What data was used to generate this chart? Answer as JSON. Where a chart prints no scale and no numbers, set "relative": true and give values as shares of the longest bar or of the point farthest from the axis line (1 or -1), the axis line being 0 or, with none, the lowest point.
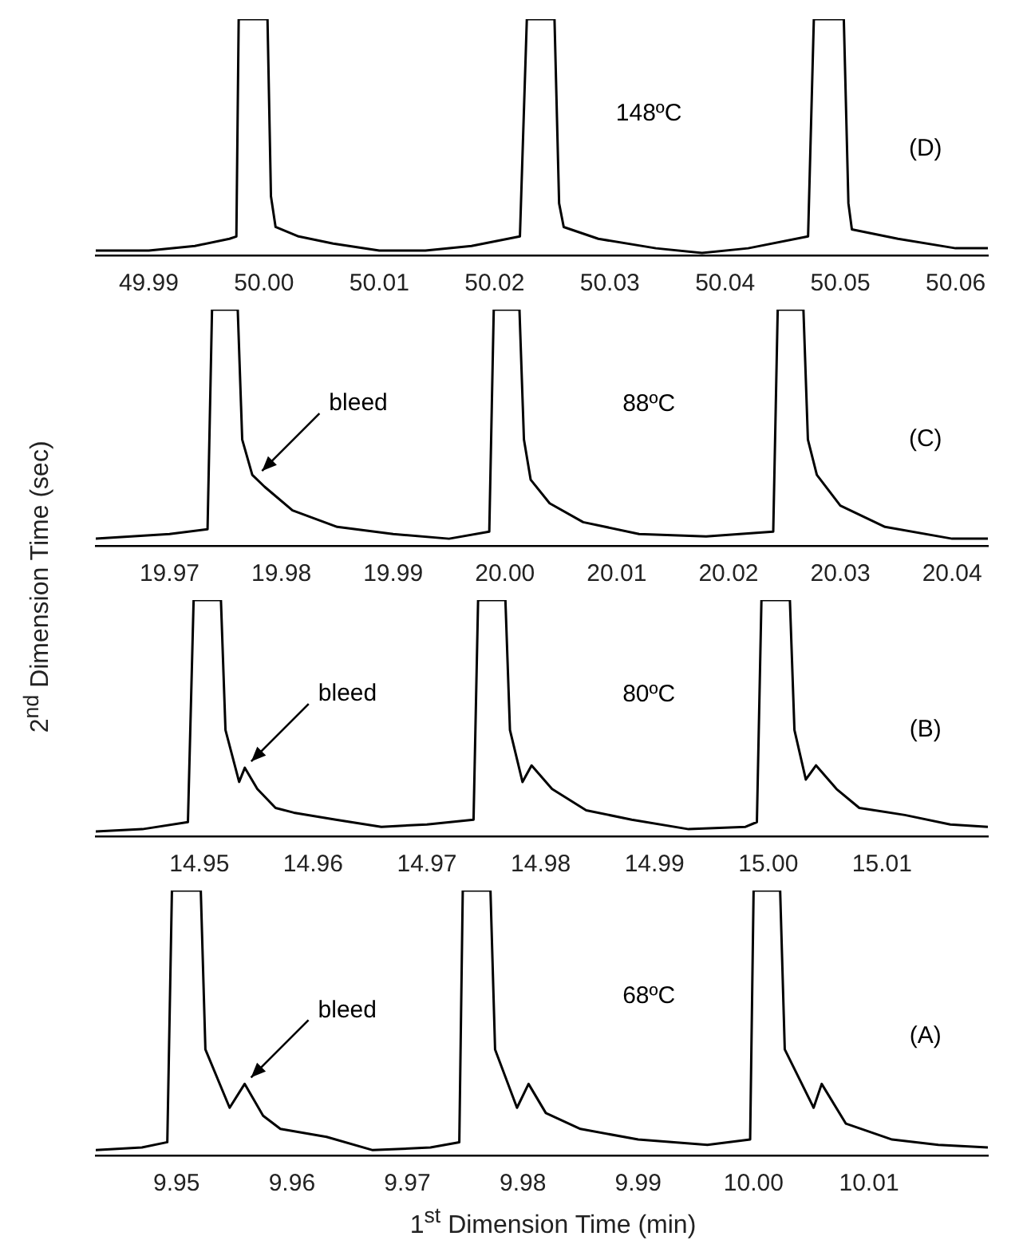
{
  "chart_data": [
    {
      "type": "line",
      "relative": true,
      "annotations": [
        "148ºC",
        "(D)"
      ],
      "xlim": [
        49.9854,
        50.0628
      ],
      "xticks": [
        {
          "value": 49.99,
          "label": "49.99"
        },
        {
          "value": 50.0,
          "label": "50.00"
        },
        {
          "value": 50.01,
          "label": "50.01"
        },
        {
          "value": 50.02,
          "label": "50.02"
        },
        {
          "value": 50.03,
          "label": "50.03"
        },
        {
          "value": 50.04,
          "label": "50.04"
        },
        {
          "value": 50.05,
          "label": "50.05"
        },
        {
          "value": 50.06,
          "label": "50.06"
        }
      ],
      "x": [
        49.9854,
        49.99,
        49.994,
        49.997,
        49.9976,
        49.9978,
        50.0003,
        50.0006,
        50.001,
        50.003,
        50.006,
        50.01,
        50.014,
        50.018,
        50.0222,
        50.0228,
        50.0252,
        50.0256,
        50.026,
        50.029,
        50.034,
        50.038,
        50.042,
        50.0472,
        50.0477,
        50.0503,
        50.0507,
        50.051,
        50.055,
        50.06,
        50.0628
      ],
      "values": [
        0.02,
        0.02,
        0.04,
        0.07,
        0.08,
        1,
        1,
        0.25,
        0.12,
        0.08,
        0.05,
        0.02,
        0.02,
        0.04,
        0.08,
        1,
        1,
        0.22,
        0.12,
        0.07,
        0.03,
        0.01,
        0.03,
        0.08,
        1,
        1,
        0.22,
        0.11,
        0.07,
        0.03,
        0.03
      ],
      "color": "#000000",
      "grid": false,
      "legend": false,
      "marker": "none",
      "tick_labels": "x"
    },
    {
      "type": "line",
      "relative": true,
      "annotations": [
        {
          "text": "bleed",
          "x": 19.9777,
          "y": 0.29
        },
        "88ºC",
        "(C)"
      ],
      "xlim": [
        19.9634,
        20.0432
      ],
      "xticks": [
        {
          "value": 19.97,
          "label": "19.97"
        },
        {
          "value": 19.98,
          "label": "19.98"
        },
        {
          "value": 19.99,
          "label": "19.99"
        },
        {
          "value": 20.0,
          "label": "20.00"
        },
        {
          "value": 20.01,
          "label": "20.01"
        },
        {
          "value": 20.02,
          "label": "20.02"
        },
        {
          "value": 20.03,
          "label": "20.03"
        },
        {
          "value": 20.04,
          "label": "20.04"
        }
      ],
      "x": [
        19.9634,
        19.97,
        19.9734,
        19.9738,
        19.9761,
        19.9765,
        19.9774,
        19.9785,
        19.981,
        19.985,
        19.99,
        19.995,
        19.9986,
        19.999,
        20.0013,
        20.0017,
        20.0023,
        20.004,
        20.007,
        20.012,
        20.018,
        20.024,
        20.0244,
        20.0267,
        20.0271,
        20.0279,
        20.03,
        20.034,
        20.04,
        20.0432
      ],
      "values": [
        0.03,
        0.05,
        0.07,
        1,
        1,
        0.45,
        0.3,
        0.25,
        0.15,
        0.08,
        0.05,
        0.03,
        0.06,
        1,
        1,
        0.45,
        0.28,
        0.18,
        0.1,
        0.05,
        0.04,
        0.06,
        1,
        1,
        0.45,
        0.3,
        0.17,
        0.08,
        0.03,
        0.03
      ],
      "color": "#000000",
      "grid": false,
      "legend": false,
      "marker": "none",
      "tick_labels": "x"
    },
    {
      "type": "line",
      "relative": true,
      "annotations": [
        {
          "text": "bleed",
          "x": 14.954,
          "y": 0.29
        },
        "80ºC",
        "(B)"
      ],
      "xlim": [
        14.9409,
        15.0193
      ],
      "xticks": [
        {
          "value": 14.95,
          "label": "14.95"
        },
        {
          "value": 14.96,
          "label": "14.96"
        },
        {
          "value": 14.97,
          "label": "14.97"
        },
        {
          "value": 14.98,
          "label": "14.98"
        },
        {
          "value": 14.99,
          "label": "14.99"
        },
        {
          "value": 15.0,
          "label": "15.00"
        },
        {
          "value": 15.01,
          "label": "15.01"
        }
      ],
      "x": [
        14.9409,
        14.945,
        14.949,
        14.9495,
        14.9519,
        14.9523,
        14.9535,
        14.954,
        14.9551,
        14.9567,
        14.9583,
        14.962,
        14.966,
        14.97,
        14.9741,
        14.9745,
        14.9769,
        14.9773,
        14.9784,
        14.9792,
        14.981,
        14.984,
        14.988,
        14.993,
        14.998,
        14.999,
        14.9994,
        15.0019,
        15.0023,
        15.0033,
        15.0042,
        15.006,
        15.008,
        15.012,
        15.016,
        15.0193
      ],
      "values": [
        0.02,
        0.03,
        0.06,
        1,
        1,
        0.45,
        0.23,
        0.29,
        0.2,
        0.12,
        0.1,
        0.07,
        0.04,
        0.05,
        0.07,
        1,
        1,
        0.45,
        0.23,
        0.3,
        0.2,
        0.11,
        0.07,
        0.03,
        0.04,
        0.06,
        1,
        1,
        0.45,
        0.24,
        0.3,
        0.2,
        0.12,
        0.09,
        0.05,
        0.04
      ],
      "color": "#000000",
      "grid": false,
      "legend": false,
      "marker": "none",
      "tick_labels": "x"
    },
    {
      "type": "line",
      "relative": true,
      "xlabel": "1$^{st}$ Dimension Time (min)",
      "ylabel": "2$^{nd}$ Dimension Time (sec)",
      "annotations": [
        {
          "text": "bleed",
          "x": 9.9559,
          "y": 0.27
        },
        "68ºC",
        "(A)"
      ],
      "xlim": [
        9.943,
        10.0203
      ],
      "xticks": [
        {
          "value": 9.95,
          "label": "9.95"
        },
        {
          "value": 9.96,
          "label": "9.96"
        },
        {
          "value": 9.97,
          "label": "9.97"
        },
        {
          "value": 9.98,
          "label": "9.98"
        },
        {
          "value": 9.99,
          "label": "9.99"
        },
        {
          "value": 10.0,
          "label": "10.00"
        },
        {
          "value": 10.01,
          "label": "10.01"
        }
      ],
      "x": [
        9.943,
        9.947,
        9.9492,
        9.9496,
        9.9521,
        9.9525,
        9.9546,
        9.9559,
        9.9575,
        9.959,
        9.963,
        9.967,
        9.972,
        9.9745,
        9.9748,
        9.9772,
        9.9776,
        9.9795,
        9.9805,
        9.982,
        9.985,
        9.99,
        9.996,
        9.9997,
        10.0,
        10.0023,
        10.0027,
        10.0052,
        10.0059,
        10.008,
        10.012,
        10.016,
        10.0203
      ],
      "values": [
        0.02,
        0.03,
        0.05,
        1,
        1,
        0.4,
        0.18,
        0.27,
        0.15,
        0.1,
        0.07,
        0.02,
        0.03,
        0.05,
        1,
        1,
        0.4,
        0.18,
        0.27,
        0.16,
        0.1,
        0.06,
        0.04,
        0.06,
        1,
        1,
        0.4,
        0.18,
        0.27,
        0.12,
        0.06,
        0.04,
        0.03
      ],
      "color": "#000000",
      "grid": false,
      "legend": false,
      "marker": "none",
      "tick_labels": "x"
    }
  ]
}
